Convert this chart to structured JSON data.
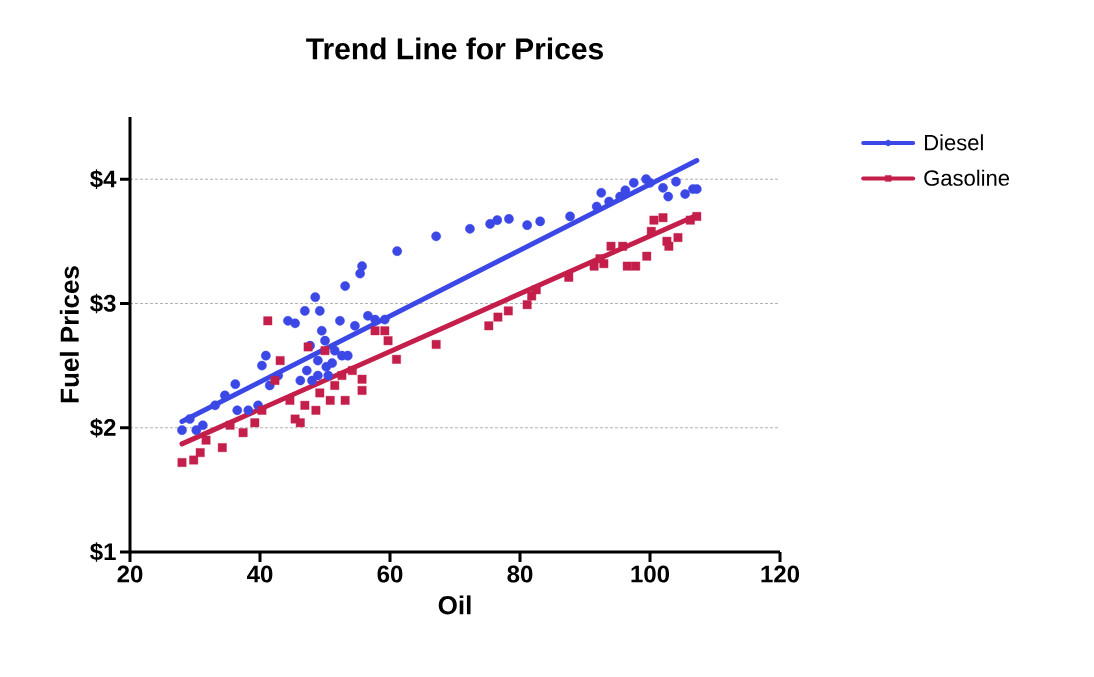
{
  "chart_data": {
    "type": "scatter",
    "title": "Trend Line for Prices",
    "xlabel": "Oil",
    "ylabel": "Fuel Prices",
    "xlim": [
      20,
      120
    ],
    "xticks": [
      20,
      40,
      60,
      80,
      100,
      120
    ],
    "ylim": [
      1,
      4.5
    ],
    "yticks": [
      {
        "value": 1,
        "label": "$1"
      },
      {
        "value": 2,
        "label": "$2"
      },
      {
        "value": 3,
        "label": "$3"
      },
      {
        "value": 4,
        "label": "$4"
      }
    ],
    "grid": "y",
    "legend": "top right",
    "series": [
      {
        "name": "Diesel",
        "marker": "circle",
        "color": "#3b48e6",
        "x": [
          28,
          29.2,
          30.2,
          31.2,
          33.1,
          34.6,
          36.2,
          36.5,
          38.2,
          39.7,
          40.3,
          40.9,
          41.5,
          42.8,
          44.3,
          45.4,
          46.2,
          46.9,
          47.2,
          47.7,
          48,
          48.5,
          48.9,
          48.9,
          49.2,
          49.5,
          50,
          50.2,
          50.5,
          51.1,
          51.5,
          52.3,
          52.6,
          53.1,
          53.5,
          54.6,
          55.4,
          55.7,
          56.6,
          57.7,
          59.2,
          61.1,
          67.1,
          72.3,
          75.4,
          76.5,
          78.3,
          81.1,
          83.1,
          87.7,
          91.8,
          92.5,
          93.7,
          95.4,
          96.2,
          97.5,
          99.4,
          100,
          102,
          102.8,
          104,
          105.4,
          106.6,
          107.2
        ],
        "values": [
          1.98,
          2.07,
          1.98,
          2.02,
          2.18,
          2.26,
          2.35,
          2.14,
          2.14,
          2.18,
          2.5,
          2.58,
          2.34,
          2.42,
          2.86,
          2.84,
          2.38,
          2.94,
          2.46,
          2.66,
          2.38,
          3.05,
          2.54,
          2.42,
          2.94,
          2.78,
          2.7,
          2.49,
          2.42,
          2.52,
          2.62,
          2.86,
          2.58,
          3.14,
          2.58,
          2.82,
          3.24,
          3.3,
          2.9,
          2.87,
          2.87,
          3.42,
          3.54,
          3.6,
          3.64,
          3.67,
          3.68,
          3.63,
          3.66,
          3.7,
          3.78,
          3.89,
          3.82,
          3.86,
          3.91,
          3.97,
          4.0,
          3.97,
          3.93,
          3.86,
          3.98,
          3.88,
          3.92,
          3.92
        ]
      },
      {
        "name": "Gasoline",
        "marker": "square",
        "color": "#c41e4b",
        "x": [
          28,
          29.8,
          30.8,
          31.7,
          34.2,
          35.4,
          37.4,
          39.2,
          40.3,
          41.2,
          42.3,
          43.1,
          44.6,
          45.4,
          46.2,
          46.9,
          47.4,
          48.6,
          49.2,
          50,
          50.8,
          51.5,
          52.6,
          53.1,
          54.2,
          55.7,
          55.7,
          57.7,
          59.2,
          59.7,
          61,
          67.1,
          75.2,
          76.6,
          78.2,
          81.1,
          81.8,
          82.5,
          87.5,
          91.4,
          92.3,
          92.9,
          94,
          95.8,
          96.5,
          97.8,
          99.5,
          100.2,
          100.6,
          102,
          102.6,
          102.9,
          104.3,
          106.2,
          107.2
        ],
        "values": [
          1.72,
          1.74,
          1.8,
          1.9,
          1.84,
          2.02,
          1.96,
          2.04,
          2.14,
          2.86,
          2.38,
          2.54,
          2.22,
          2.07,
          2.04,
          2.18,
          2.65,
          2.14,
          2.28,
          2.62,
          2.22,
          2.34,
          2.42,
          2.22,
          2.46,
          2.3,
          2.39,
          2.78,
          2.78,
          2.7,
          2.55,
          2.67,
          2.82,
          2.89,
          2.94,
          2.99,
          3.06,
          3.11,
          3.21,
          3.3,
          3.36,
          3.32,
          3.46,
          3.46,
          3.3,
          3.3,
          3.38,
          3.58,
          3.67,
          3.69,
          3.5,
          3.46,
          3.53,
          3.67,
          3.7
        ]
      },
      {
        "type": "line",
        "marker": "none",
        "color": "#3b48e6",
        "x": [
          28,
          107.2
        ],
        "values": [
          2.05,
          4.15
        ]
      },
      {
        "type": "line",
        "marker": "none",
        "color": "#c41e4b",
        "x": [
          28,
          107.2
        ],
        "values": [
          1.87,
          3.71
        ]
      }
    ]
  }
}
